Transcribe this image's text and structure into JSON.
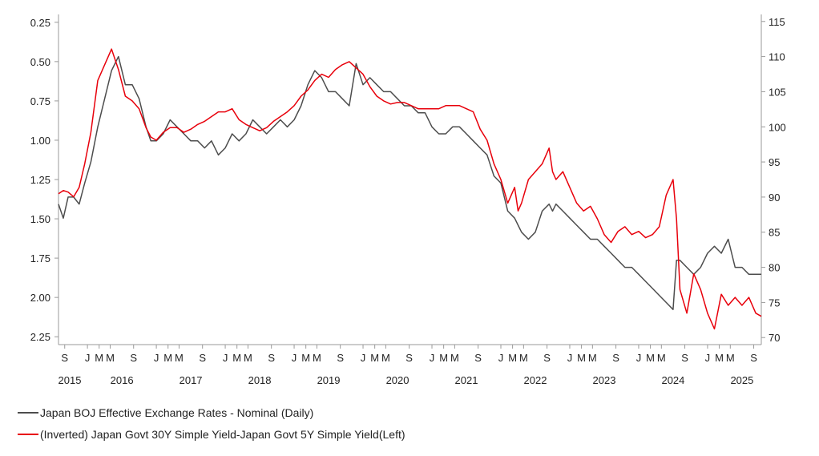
{
  "chart_data": {
    "type": "line",
    "title": "",
    "xlabel": "",
    "ylabel": "",
    "left_axis": {
      "inverted": true,
      "ylim": [
        0.2,
        2.3
      ],
      "ticks": [
        "0.25",
        "0.50",
        "0.75",
        "1.00",
        "1.25",
        "1.50",
        "1.75",
        "2.00",
        "2.25"
      ]
    },
    "right_axis": {
      "ylim": [
        69,
        116
      ],
      "ticks": [
        "115",
        "110",
        "105",
        "100",
        "95",
        "90",
        "85",
        "80",
        "75",
        "70"
      ]
    },
    "xlim": [
      2015.58,
      2025.78
    ],
    "month_ticks": [
      {
        "x": 2015.67,
        "label": "S"
      },
      {
        "x": 2016.0,
        "label": "J"
      },
      {
        "x": 2016.17,
        "label": "M"
      },
      {
        "x": 2016.33,
        "label": "M"
      },
      {
        "x": 2016.67,
        "label": "S"
      },
      {
        "x": 2017.0,
        "label": "J"
      },
      {
        "x": 2017.17,
        "label": "M"
      },
      {
        "x": 2017.33,
        "label": "M"
      },
      {
        "x": 2017.67,
        "label": "S"
      },
      {
        "x": 2018.0,
        "label": "J"
      },
      {
        "x": 2018.17,
        "label": "M"
      },
      {
        "x": 2018.33,
        "label": "M"
      },
      {
        "x": 2018.67,
        "label": "S"
      },
      {
        "x": 2019.0,
        "label": "J"
      },
      {
        "x": 2019.17,
        "label": "M"
      },
      {
        "x": 2019.33,
        "label": "M"
      },
      {
        "x": 2019.67,
        "label": "S"
      },
      {
        "x": 2020.0,
        "label": "J"
      },
      {
        "x": 2020.17,
        "label": "M"
      },
      {
        "x": 2020.33,
        "label": "M"
      },
      {
        "x": 2020.67,
        "label": "S"
      },
      {
        "x": 2021.0,
        "label": "J"
      },
      {
        "x": 2021.17,
        "label": "M"
      },
      {
        "x": 2021.33,
        "label": "M"
      },
      {
        "x": 2021.67,
        "label": "S"
      },
      {
        "x": 2022.0,
        "label": "J"
      },
      {
        "x": 2022.17,
        "label": "M"
      },
      {
        "x": 2022.33,
        "label": "M"
      },
      {
        "x": 2022.67,
        "label": "S"
      },
      {
        "x": 2023.0,
        "label": "J"
      },
      {
        "x": 2023.17,
        "label": "M"
      },
      {
        "x": 2023.33,
        "label": "M"
      },
      {
        "x": 2023.67,
        "label": "S"
      },
      {
        "x": 2024.0,
        "label": "J"
      },
      {
        "x": 2024.17,
        "label": "M"
      },
      {
        "x": 2024.33,
        "label": "M"
      },
      {
        "x": 2024.67,
        "label": "S"
      },
      {
        "x": 2025.0,
        "label": "J"
      },
      {
        "x": 2025.17,
        "label": "M"
      },
      {
        "x": 2025.33,
        "label": "M"
      },
      {
        "x": 2025.67,
        "label": "S"
      }
    ],
    "year_labels": [
      {
        "x": 2015.5,
        "label": "2015"
      },
      {
        "x": 2016.5,
        "label": "2016"
      },
      {
        "x": 2017.5,
        "label": "2017"
      },
      {
        "x": 2018.5,
        "label": "2018"
      },
      {
        "x": 2019.5,
        "label": "2019"
      },
      {
        "x": 2020.5,
        "label": "2020"
      },
      {
        "x": 2021.5,
        "label": "2021"
      },
      {
        "x": 2022.5,
        "label": "2022"
      },
      {
        "x": 2023.5,
        "label": "2023"
      },
      {
        "x": 2024.5,
        "label": "2024"
      },
      {
        "x": 2025.5,
        "label": "2025"
      }
    ],
    "series": [
      {
        "name": "Japan BOJ Effective Exchange Rates - Nominal (Daily)",
        "axis": "right",
        "color": "#4d4d4d",
        "x": [
          2015.58,
          2015.65,
          2015.72,
          2015.8,
          2015.88,
          2015.96,
          2016.05,
          2016.15,
          2016.25,
          2016.35,
          2016.45,
          2016.55,
          2016.65,
          2016.75,
          2016.85,
          2016.92,
          2017.0,
          2017.1,
          2017.2,
          2017.3,
          2017.4,
          2017.5,
          2017.6,
          2017.7,
          2017.8,
          2017.9,
          2018.0,
          2018.1,
          2018.2,
          2018.3,
          2018.4,
          2018.5,
          2018.6,
          2018.7,
          2018.8,
          2018.9,
          2019.0,
          2019.1,
          2019.2,
          2019.3,
          2019.4,
          2019.5,
          2019.6,
          2019.7,
          2019.8,
          2019.9,
          2020.0,
          2020.1,
          2020.2,
          2020.3,
          2020.4,
          2020.5,
          2020.6,
          2020.7,
          2020.8,
          2020.9,
          2021.0,
          2021.1,
          2021.2,
          2021.3,
          2021.4,
          2021.5,
          2021.6,
          2021.7,
          2021.8,
          2021.9,
          2022.0,
          2022.1,
          2022.2,
          2022.25,
          2022.3,
          2022.4,
          2022.5,
          2022.6,
          2022.7,
          2022.75,
          2022.8,
          2022.9,
          2023.0,
          2023.1,
          2023.2,
          2023.3,
          2023.4,
          2023.5,
          2023.6,
          2023.7,
          2023.8,
          2023.9,
          2024.0,
          2024.1,
          2024.2,
          2024.3,
          2024.4,
          2024.5,
          2024.55,
          2024.6,
          2024.7,
          2024.8,
          2024.9,
          2025.0,
          2025.1,
          2025.2,
          2025.3,
          2025.4,
          2025.5,
          2025.6,
          2025.7,
          2025.78
        ],
        "y": [
          89,
          87,
          90,
          90,
          89,
          92,
          95,
          100,
          104,
          108,
          110,
          106,
          106,
          104,
          100,
          98,
          98,
          99,
          101,
          100,
          99,
          98,
          98,
          97,
          98,
          96,
          97,
          99,
          98,
          99,
          101,
          100,
          99,
          100,
          101,
          100,
          101,
          103,
          106,
          108,
          107,
          105,
          105,
          104,
          103,
          109,
          106,
          107,
          106,
          105,
          105,
          104,
          103,
          103,
          102,
          102,
          100,
          99,
          99,
          100,
          100,
          99,
          98,
          97,
          96,
          93,
          92,
          88,
          87,
          86,
          85,
          84,
          85,
          88,
          89,
          88,
          89,
          88,
          87,
          86,
          85,
          84,
          84,
          83,
          82,
          81,
          80,
          80,
          79,
          78,
          77,
          76,
          75,
          74,
          81,
          81,
          80,
          79,
          80,
          82,
          83,
          82,
          84,
          80,
          80,
          79,
          79,
          79
        ]
      },
      {
        "name": "(Inverted) Japan Govt 30Y Simple Yield-Japan Govt 5Y Simple Yield(Left)",
        "axis": "left",
        "color": "#e8000b",
        "x": [
          2015.58,
          2015.65,
          2015.72,
          2015.8,
          2015.88,
          2015.96,
          2016.05,
          2016.15,
          2016.25,
          2016.35,
          2016.45,
          2016.55,
          2016.65,
          2016.75,
          2016.85,
          2016.92,
          2017.0,
          2017.1,
          2017.2,
          2017.3,
          2017.4,
          2017.5,
          2017.6,
          2017.7,
          2017.8,
          2017.9,
          2018.0,
          2018.1,
          2018.2,
          2018.3,
          2018.4,
          2018.5,
          2018.6,
          2018.7,
          2018.8,
          2018.9,
          2019.0,
          2019.1,
          2019.2,
          2019.3,
          2019.4,
          2019.5,
          2019.6,
          2019.7,
          2019.8,
          2019.9,
          2020.0,
          2020.1,
          2020.2,
          2020.3,
          2020.4,
          2020.5,
          2020.6,
          2020.7,
          2020.8,
          2020.9,
          2021.0,
          2021.1,
          2021.2,
          2021.3,
          2021.4,
          2021.5,
          2021.6,
          2021.7,
          2021.8,
          2021.9,
          2022.0,
          2022.1,
          2022.2,
          2022.25,
          2022.3,
          2022.4,
          2022.5,
          2022.6,
          2022.7,
          2022.75,
          2022.8,
          2022.9,
          2023.0,
          2023.1,
          2023.2,
          2023.3,
          2023.4,
          2023.5,
          2023.6,
          2023.7,
          2023.8,
          2023.9,
          2024.0,
          2024.1,
          2024.2,
          2024.3,
          2024.4,
          2024.5,
          2024.55,
          2024.6,
          2024.7,
          2024.8,
          2024.9,
          2025.0,
          2025.1,
          2025.2,
          2025.3,
          2025.4,
          2025.5,
          2025.6,
          2025.7,
          2025.78
        ],
        "y": [
          1.34,
          1.32,
          1.33,
          1.36,
          1.3,
          1.15,
          0.95,
          0.62,
          0.52,
          0.42,
          0.55,
          0.72,
          0.75,
          0.8,
          0.92,
          0.98,
          1.0,
          0.95,
          0.92,
          0.92,
          0.95,
          0.93,
          0.9,
          0.88,
          0.85,
          0.82,
          0.82,
          0.8,
          0.87,
          0.9,
          0.92,
          0.94,
          0.92,
          0.88,
          0.85,
          0.82,
          0.78,
          0.72,
          0.68,
          0.62,
          0.58,
          0.6,
          0.55,
          0.52,
          0.5,
          0.54,
          0.58,
          0.66,
          0.72,
          0.75,
          0.77,
          0.76,
          0.76,
          0.78,
          0.8,
          0.8,
          0.8,
          0.8,
          0.78,
          0.78,
          0.78,
          0.8,
          0.82,
          0.93,
          1.0,
          1.15,
          1.25,
          1.4,
          1.3,
          1.45,
          1.4,
          1.25,
          1.2,
          1.15,
          1.05,
          1.2,
          1.25,
          1.2,
          1.3,
          1.4,
          1.45,
          1.42,
          1.5,
          1.6,
          1.65,
          1.58,
          1.55,
          1.6,
          1.58,
          1.62,
          1.6,
          1.55,
          1.35,
          1.25,
          1.5,
          1.95,
          2.1,
          1.85,
          1.95,
          2.1,
          2.2,
          1.98,
          2.05,
          2.0,
          2.05,
          2.0,
          2.1,
          2.12
        ]
      }
    ]
  },
  "legend": {
    "item1": "Japan BOJ Effective Exchange Rates - Nominal (Daily)",
    "item2": "(Inverted) Japan Govt 30Y Simple Yield-Japan Govt 5Y Simple Yield(Left)"
  }
}
